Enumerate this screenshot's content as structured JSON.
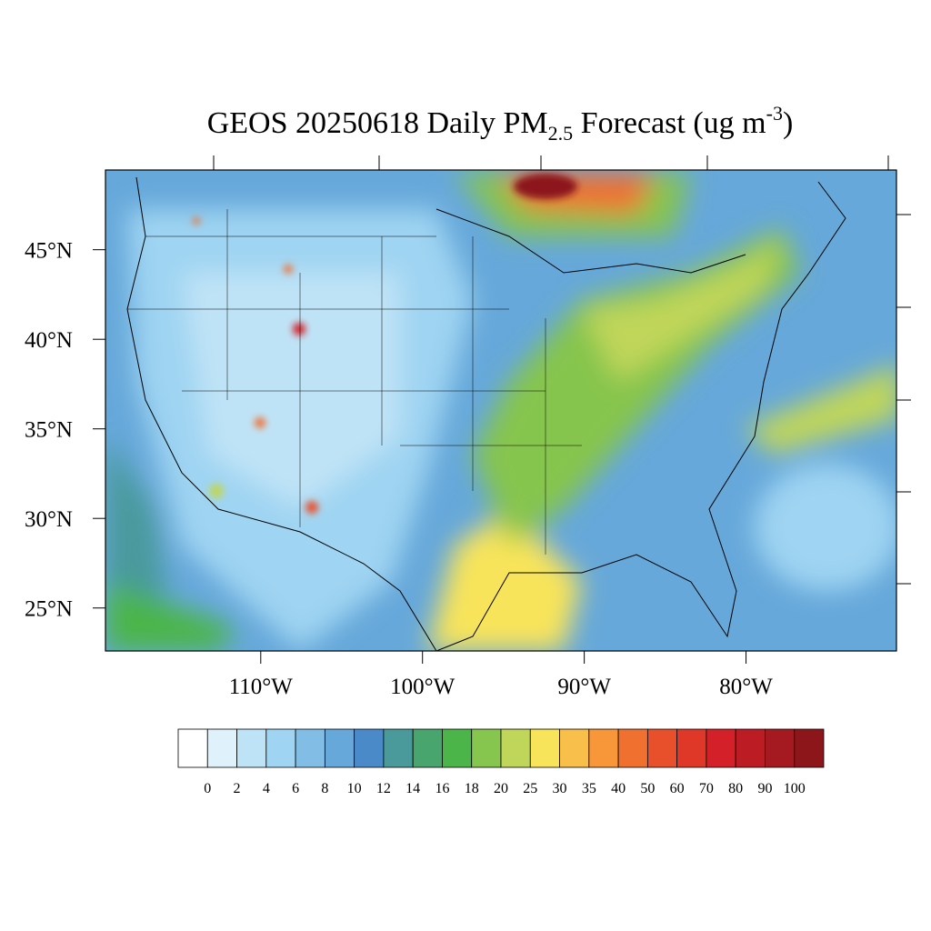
{
  "map": {
    "title": {
      "main": "GEOS 20250618 Daily PM",
      "sub": "2.5",
      "mid": " Forecast (ug m",
      "sup": "-3",
      "end": ")"
    },
    "lonlim": [
      -119.6,
      -70.7
    ],
    "latlim": [
      22.6,
      49.45
    ],
    "lat_labels": [
      {
        "value": 45,
        "label": "45°N"
      },
      {
        "value": 40,
        "label": "40°N"
      },
      {
        "value": 35,
        "label": "35°N"
      },
      {
        "value": 30,
        "label": "30°N"
      },
      {
        "value": 25,
        "label": "25°N"
      }
    ],
    "lon_labels": [
      {
        "value": -110,
        "label": "110°W"
      },
      {
        "value": -100,
        "label": "100°W"
      },
      {
        "value": -90,
        "label": "90°W"
      },
      {
        "value": -80,
        "label": "80°W"
      }
    ],
    "legend": {
      "levels": [
        0,
        2,
        4,
        6,
        8,
        10,
        12,
        14,
        16,
        18,
        20,
        25,
        30,
        35,
        40,
        50,
        60,
        70,
        80,
        90,
        100
      ],
      "colors": [
        "#ffffff",
        "#dff1fa",
        "#bfe3f6",
        "#9fd4f2",
        "#82bde6",
        "#66a8da",
        "#4a8ac8",
        "#4a9a9c",
        "#48a56e",
        "#4cb54a",
        "#86c54e",
        "#c0d65a",
        "#f8e45a",
        "#f8bf4a",
        "#f8963a",
        "#f07030",
        "#e8502c",
        "#e03828",
        "#d42028",
        "#bc1c24",
        "#a41a20",
        "#8c161a"
      ]
    }
  }
}
